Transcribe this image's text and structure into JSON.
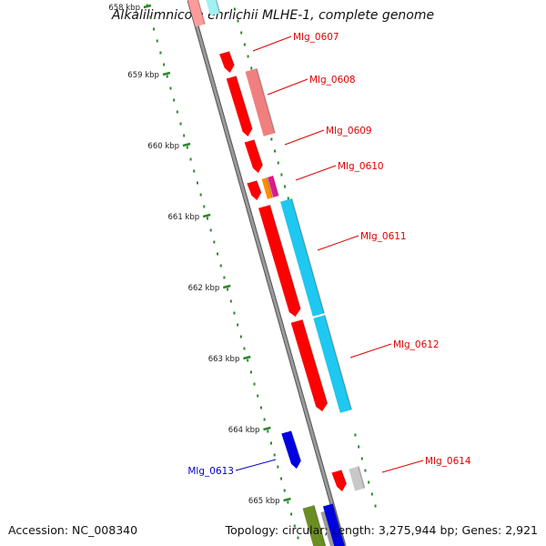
{
  "title": "Alkalilimnicola ehrlichii MLHE-1, complete genome",
  "footer": {
    "accession": "Accession: NC_008340",
    "info": "Topology: circular; Length: 3,275,944 bp; Genes: 2,921"
  },
  "scale_labels": [
    "658 kbp",
    "659 kbp",
    "660 kbp",
    "661 kbp",
    "662 kbp",
    "663 kbp",
    "664 kbp",
    "665 kbp"
  ],
  "gene_labels": [
    {
      "text": "Mlg_0607",
      "color": "#e00000"
    },
    {
      "text": "Mlg_0608",
      "color": "#e00000"
    },
    {
      "text": "Mlg_0609",
      "color": "#e00000"
    },
    {
      "text": "Mlg_0610",
      "color": "#e00000"
    },
    {
      "text": "Mlg_0611",
      "color": "#e00000"
    },
    {
      "text": "Mlg_0612",
      "color": "#e00000"
    },
    {
      "text": "Mlg_0613",
      "color": "#0000cc"
    },
    {
      "text": "Mlg_0614",
      "color": "#e00000"
    }
  ],
  "colors": {
    "cds": "#ff0000",
    "cds_light": "#f08080",
    "cyan": "#1ec8f0",
    "blue": "#0000e0",
    "orange": "#ff8c00",
    "magenta": "#e01890",
    "grey": "#c8c8c8",
    "olive": "#6b8e23",
    "backbone": "#888888",
    "tick": "#2a8a2a"
  }
}
